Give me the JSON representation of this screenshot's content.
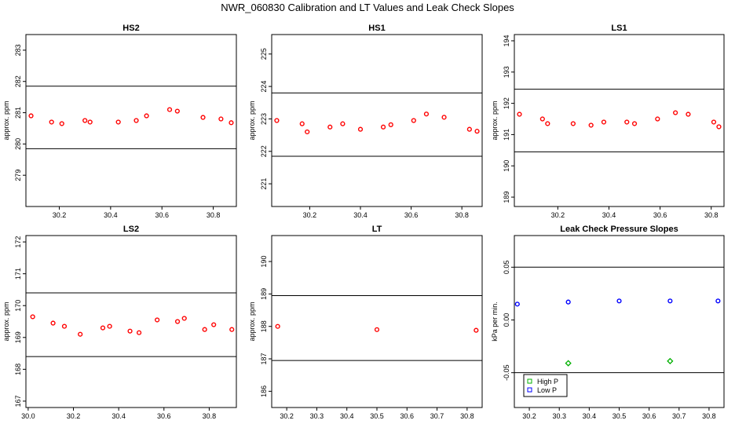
{
  "suptitle": "NWR_060830  Calibration and LT Values and Leak Check Slopes",
  "chart_data": [
    {
      "type": "scatter",
      "title": "HS2",
      "ylabel": "approx. ppm",
      "xlim": [
        30.07,
        30.89
      ],
      "ylim": [
        278.0,
        283.5
      ],
      "xticks": [
        {
          "v": 30.2,
          "label": "30.2"
        },
        {
          "v": 30.4,
          "label": "30.4"
        },
        {
          "v": 30.6,
          "label": "30.6"
        },
        {
          "v": 30.8,
          "label": "30.8"
        }
      ],
      "yticks": [
        {
          "v": 279,
          "label": "279"
        },
        {
          "v": 280,
          "label": "280"
        },
        {
          "v": 281,
          "label": "281"
        },
        {
          "v": 282,
          "label": "282"
        },
        {
          "v": 283,
          "label": "283"
        }
      ],
      "hlines": [
        281.85,
        279.85
      ],
      "series": [
        {
          "name": "HS2",
          "color": "#ff0000",
          "marker": "circle",
          "x": [
            30.09,
            30.17,
            30.21,
            30.3,
            30.32,
            30.43,
            30.5,
            30.54,
            30.63,
            30.66,
            30.76,
            30.83,
            30.87
          ],
          "y": [
            280.9,
            280.7,
            280.65,
            280.75,
            280.7,
            280.7,
            280.75,
            280.9,
            281.1,
            281.05,
            280.85,
            280.8,
            280.68
          ]
        }
      ]
    },
    {
      "type": "scatter",
      "title": "HS1",
      "ylabel": "approx. ppm",
      "xlim": [
        30.05,
        30.88
      ],
      "ylim": [
        220.3,
        225.6
      ],
      "xticks": [
        {
          "v": 30.2,
          "label": "30.2"
        },
        {
          "v": 30.4,
          "label": "30.4"
        },
        {
          "v": 30.6,
          "label": "30.6"
        },
        {
          "v": 30.8,
          "label": "30.8"
        }
      ],
      "yticks": [
        {
          "v": 221,
          "label": "221"
        },
        {
          "v": 222,
          "label": "222"
        },
        {
          "v": 223,
          "label": "223"
        },
        {
          "v": 224,
          "label": "224"
        },
        {
          "v": 225,
          "label": "225"
        }
      ],
      "hlines": [
        223.8,
        221.85
      ],
      "series": [
        {
          "name": "HS1",
          "color": "#ff0000",
          "marker": "circle",
          "x": [
            30.07,
            30.17,
            30.19,
            30.28,
            30.33,
            30.4,
            30.49,
            30.52,
            30.61,
            30.66,
            30.73,
            30.83,
            30.86
          ],
          "y": [
            222.95,
            222.85,
            222.6,
            222.75,
            222.85,
            222.68,
            222.75,
            222.82,
            222.95,
            223.15,
            223.05,
            222.68,
            222.62
          ]
        }
      ]
    },
    {
      "type": "scatter",
      "title": "LS1",
      "ylabel": "approx. ppm",
      "xlim": [
        30.03,
        30.85
      ],
      "ylim": [
        188.7,
        194.2
      ],
      "xticks": [
        {
          "v": 30.2,
          "label": "30.2"
        },
        {
          "v": 30.4,
          "label": "30.4"
        },
        {
          "v": 30.6,
          "label": "30.6"
        },
        {
          "v": 30.8,
          "label": "30.8"
        }
      ],
      "yticks": [
        {
          "v": 189,
          "label": "189"
        },
        {
          "v": 190,
          "label": "190"
        },
        {
          "v": 191,
          "label": "191"
        },
        {
          "v": 192,
          "label": "192"
        },
        {
          "v": 193,
          "label": "193"
        },
        {
          "v": 194,
          "label": "194"
        }
      ],
      "hlines": [
        192.45,
        190.45
      ],
      "series": [
        {
          "name": "LS1",
          "color": "#ff0000",
          "marker": "circle",
          "x": [
            30.05,
            30.14,
            30.16,
            30.26,
            30.33,
            30.38,
            30.47,
            30.5,
            30.59,
            30.66,
            30.71,
            30.81,
            30.83
          ],
          "y": [
            191.65,
            191.5,
            191.35,
            191.35,
            191.3,
            191.4,
            191.4,
            191.35,
            191.5,
            191.7,
            191.65,
            191.4,
            191.25
          ]
        }
      ]
    },
    {
      "type": "scatter",
      "title": "LS2",
      "ylabel": "approx. ppm",
      "xlim": [
        29.99,
        30.92
      ],
      "ylim": [
        166.8,
        172.2
      ],
      "xticks": [
        {
          "v": 30.0,
          "label": "30.0"
        },
        {
          "v": 30.2,
          "label": "30.2"
        },
        {
          "v": 30.4,
          "label": "30.4"
        },
        {
          "v": 30.6,
          "label": "30.6"
        },
        {
          "v": 30.8,
          "label": "30.8"
        }
      ],
      "yticks": [
        {
          "v": 167,
          "label": "167"
        },
        {
          "v": 168,
          "label": "168"
        },
        {
          "v": 169,
          "label": "169"
        },
        {
          "v": 170,
          "label": "170"
        },
        {
          "v": 171,
          "label": "171"
        },
        {
          "v": 172,
          "label": "172"
        }
      ],
      "hlines": [
        170.4,
        168.4
      ],
      "series": [
        {
          "name": "LS2",
          "color": "#ff0000",
          "marker": "circle",
          "x": [
            30.02,
            30.11,
            30.16,
            30.23,
            30.33,
            30.36,
            30.45,
            30.49,
            30.57,
            30.66,
            30.69,
            30.78,
            30.82,
            30.9
          ],
          "y": [
            169.65,
            169.45,
            169.35,
            169.1,
            169.3,
            169.35,
            169.2,
            169.15,
            169.55,
            169.5,
            169.6,
            169.25,
            169.4,
            169.25
          ]
        }
      ]
    },
    {
      "type": "scatter",
      "title": "LT",
      "ylabel": "approx. ppm",
      "xlim": [
        30.15,
        30.85
      ],
      "ylim": [
        185.5,
        190.8
      ],
      "xticks": [
        {
          "v": 30.2,
          "label": "30.2"
        },
        {
          "v": 30.3,
          "label": "30.3"
        },
        {
          "v": 30.4,
          "label": "30.4"
        },
        {
          "v": 30.5,
          "label": "30.5"
        },
        {
          "v": 30.6,
          "label": "30.6"
        },
        {
          "v": 30.7,
          "label": "30.7"
        },
        {
          "v": 30.8,
          "label": "30.8"
        }
      ],
      "yticks": [
        {
          "v": 186,
          "label": "186"
        },
        {
          "v": 187,
          "label": "187"
        },
        {
          "v": 188,
          "label": "188"
        },
        {
          "v": 189,
          "label": "189"
        },
        {
          "v": 190,
          "label": "190"
        }
      ],
      "hlines": [
        188.95,
        186.95
      ],
      "series": [
        {
          "name": "LT",
          "color": "#ff0000",
          "marker": "circle",
          "x": [
            30.17,
            30.5,
            30.83
          ],
          "y": [
            188.0,
            187.9,
            187.88
          ]
        }
      ]
    },
    {
      "type": "scatter",
      "title": "Leak Check Pressure Slopes",
      "ylabel": "kPa per min.",
      "xlim": [
        30.15,
        30.85
      ],
      "ylim": [
        -0.083,
        0.08
      ],
      "xticks": [
        {
          "v": 30.2,
          "label": "30.2"
        },
        {
          "v": 30.3,
          "label": "30.3"
        },
        {
          "v": 30.4,
          "label": "30.4"
        },
        {
          "v": 30.5,
          "label": "30.5"
        },
        {
          "v": 30.6,
          "label": "30.6"
        },
        {
          "v": 30.7,
          "label": "30.7"
        },
        {
          "v": 30.8,
          "label": "30.8"
        }
      ],
      "yticks": [
        {
          "v": -0.05,
          "label": "-0.05"
        },
        {
          "v": 0.0,
          "label": "0.00"
        },
        {
          "v": 0.05,
          "label": "0.05"
        }
      ],
      "hlines": [
        0.05,
        -0.05
      ],
      "legend": {
        "position": "bottom-left",
        "entries": [
          {
            "label": "High P",
            "color": "#00b000"
          },
          {
            "label": "Low P",
            "color": "#0000ff"
          }
        ]
      },
      "series": [
        {
          "name": "High P",
          "color": "#00b000",
          "marker": "diamond",
          "x": [
            30.33,
            30.67
          ],
          "y": [
            -0.041,
            -0.039
          ]
        },
        {
          "name": "Low P",
          "color": "#0000ff",
          "marker": "circle",
          "x": [
            30.16,
            30.33,
            30.5,
            30.67,
            30.83
          ],
          "y": [
            0.015,
            0.017,
            0.018,
            0.018,
            0.018
          ]
        }
      ]
    }
  ]
}
